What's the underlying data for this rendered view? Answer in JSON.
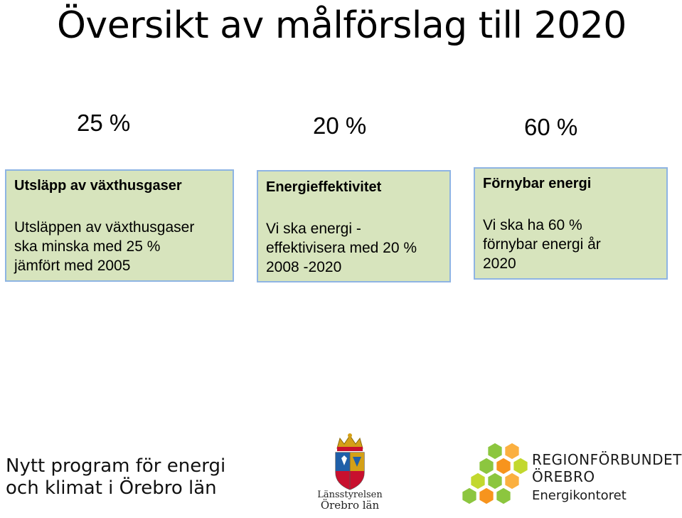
{
  "slide": {
    "title": "Översikt av målförslag till 2020"
  },
  "goals": [
    {
      "percent": "25 %",
      "heading": "Utsläpp av växthusgaser",
      "lines": [
        "Utsläppen av växthusgaser",
        "ska minska med 25 %",
        "jämfört med 2005"
      ]
    },
    {
      "percent": "20 %",
      "heading": "Energieffektivitet",
      "lines": [
        "Vi ska energi -",
        "effektivisera med 20 %",
        "2008 -2020"
      ]
    },
    {
      "percent": "60 %",
      "heading": "Förnybar energi",
      "lines": [
        "Vi ska ha 60 %",
        "förnybar energi år",
        "2020"
      ]
    }
  ],
  "footer": {
    "program_lines": [
      "Nytt program för energi",
      "och klimat i Örebro län"
    ],
    "lansstyrelsen": {
      "line1": "Länsstyrelsen",
      "line2": "Örebro län",
      "icon": "coat-of-arms-icon"
    },
    "regionforbundet": {
      "line1": "REGIONFÖRBUNDET",
      "line2": "ÖREBRO",
      "line3": "Energikontoret",
      "icon": "hexagon-cluster-icon",
      "colors": [
        "#8cc63f",
        "#f7941d",
        "#fbb040",
        "#c2d82e"
      ]
    }
  },
  "colors": {
    "box_fill": "#d7e4bd",
    "box_border": "#8eb4e3"
  }
}
